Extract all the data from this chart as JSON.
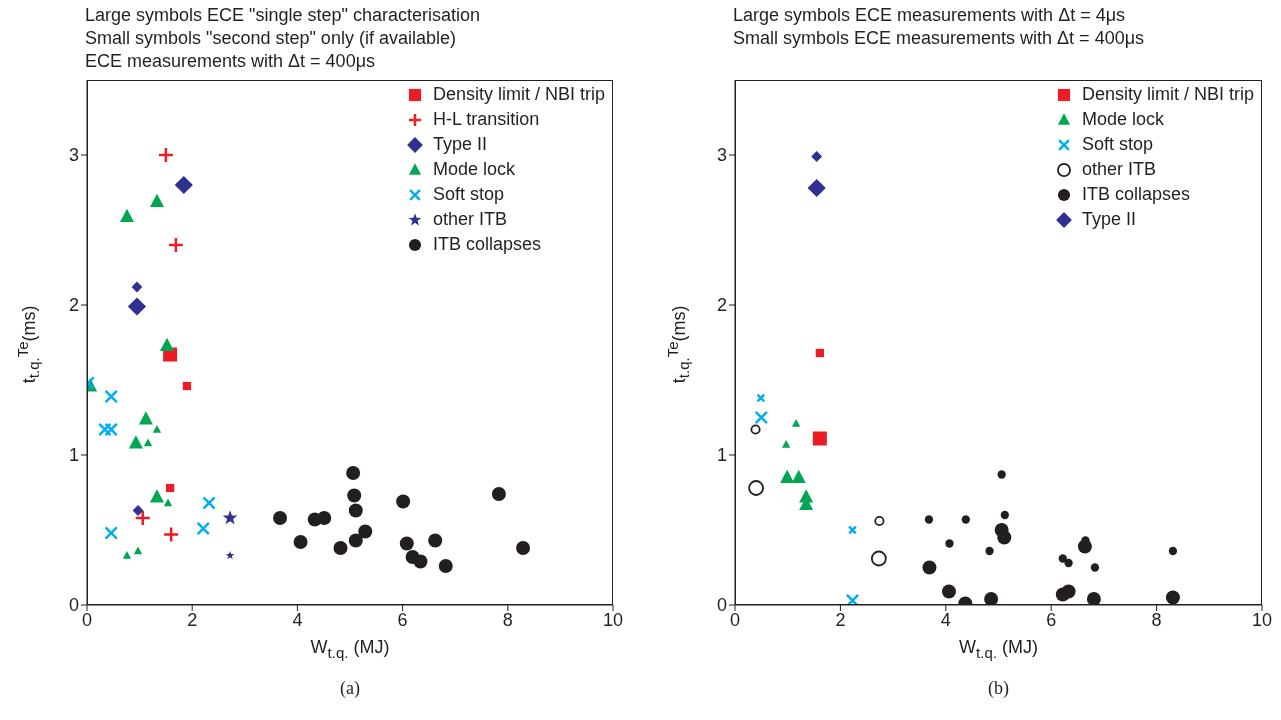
{
  "chart_data": [
    {
      "type": "scatter",
      "title": "Large symbols ECE \"single step\" characterisation\nSmall symbols \"second step\" only (if available)\nECE measurements with Δt = 400μs",
      "xlabel": "W$_{t.q.}$ (MJ)",
      "ylabel": "t$_{t.q.}$$^{Te}$(ms)",
      "annotations": [
        "(a)"
      ],
      "xlim": [
        0,
        10
      ],
      "xticks": [
        0,
        2,
        4,
        6,
        8,
        10
      ],
      "ylim": [
        0,
        3.5
      ],
      "yticks": [
        0,
        1,
        2,
        3
      ],
      "legend": "top right",
      "series": [
        {
          "name": "Density limit / NBI trip",
          "color": "#ed1c24",
          "marker": "square",
          "x": [
            1.58
          ],
          "values": [
            1.67
          ]
        },
        {
          "name": "H-L transition",
          "color": "#ed1c24",
          "marker": "plus",
          "x": [
            1.5,
            1.69,
            1.06,
            1.6
          ],
          "values": [
            3.0,
            2.4,
            0.58,
            0.47
          ]
        },
        {
          "name": "Type II",
          "color": "#2e3192",
          "marker": "diamond",
          "x": [
            1.84,
            0.95
          ],
          "values": [
            2.8,
            1.99
          ]
        },
        {
          "name": "Mode lock",
          "color": "#00a651",
          "marker": "triangle",
          "x": [
            0.76,
            1.33,
            1.52,
            0.06,
            1.12,
            0.93,
            1.33
          ],
          "values": [
            2.59,
            2.69,
            1.73,
            1.46,
            1.24,
            1.08,
            0.72
          ]
        },
        {
          "name": "Soft stop",
          "color": "#00aeef",
          "marker": "cross",
          "x": [
            0.02,
            0.46,
            0.34,
            0.46,
            0.46,
            2.32,
            2.21
          ],
          "values": [
            1.48,
            1.39,
            1.17,
            1.17,
            0.48,
            0.68,
            0.51
          ]
        },
        {
          "name": "other ITB",
          "color": "#2e3192",
          "marker": "star",
          "x": [
            2.72
          ],
          "values": [
            0.58
          ]
        },
        {
          "name": "ITB collapses",
          "color": "#231f20",
          "marker": "circle",
          "x": [
            3.67,
            4.06,
            4.33,
            4.51,
            4.82,
            5.06,
            5.08,
            5.11,
            5.11,
            5.29,
            6.01,
            6.08,
            6.19,
            6.34,
            6.62,
            6.82,
            7.83,
            8.29
          ],
          "values": [
            0.58,
            0.42,
            0.57,
            0.58,
            0.38,
            0.88,
            0.73,
            0.63,
            0.43,
            0.49,
            0.69,
            0.41,
            0.32,
            0.29,
            0.43,
            0.26,
            0.74,
            0.38
          ]
        },
        {
          "color": "#ed1c24",
          "marker": "square",
          "x": [
            1.9,
            1.58
          ],
          "values": [
            1.46,
            0.78
          ]
        },
        {
          "color": "#2e3192",
          "marker": "diamond",
          "x": [
            0.95,
            0.97
          ],
          "values": [
            2.12,
            0.63
          ]
        },
        {
          "color": "#00a651",
          "marker": "triangle",
          "x": [
            1.33,
            1.16,
            1.54,
            0.97,
            0.76
          ],
          "values": [
            1.17,
            1.08,
            0.68,
            0.36,
            0.33
          ]
        },
        {
          "color": "#2e3192",
          "marker": "star",
          "x": [
            2.72
          ],
          "values": [
            0.33
          ]
        }
      ]
    },
    {
      "type": "scatter",
      "title": "Large symbols ECE measurements with Δt = 4μs\nSmall symbols ECE measurements with Δt = 400μs",
      "xlabel": "W$_{t.q.}$ (MJ)",
      "ylabel": "t$_{t.q.}$$^{Te}$(ms)",
      "annotations": [
        "(b)"
      ],
      "xlim": [
        0,
        10
      ],
      "xticks": [
        0,
        2,
        4,
        6,
        8,
        10
      ],
      "ylim": [
        0,
        3.5
      ],
      "yticks": [
        0,
        1,
        2,
        3
      ],
      "legend": "top right",
      "series": [
        {
          "name": "Density limit / NBI trip",
          "color": "#ed1c24",
          "marker": "square",
          "x": [
            1.61
          ],
          "values": [
            1.11
          ]
        },
        {
          "name": "Mode lock",
          "color": "#00a651",
          "marker": "triangle",
          "x": [
            0.99,
            1.21,
            1.35,
            1.35
          ],
          "values": [
            0.85,
            0.85,
            0.72,
            0.67
          ]
        },
        {
          "name": "Soft stop",
          "color": "#00aeef",
          "marker": "cross",
          "x": [
            0.5,
            2.23
          ],
          "values": [
            1.25,
            0.03
          ]
        },
        {
          "name": "other ITB",
          "color": "#231f20",
          "marker": "circle-open",
          "x": [
            0.4,
            2.73
          ],
          "values": [
            0.78,
            0.31
          ]
        },
        {
          "name": "ITB collapses",
          "color": "#231f20",
          "marker": "circle",
          "x": [
            5.06,
            5.11,
            6.64,
            3.69,
            4.06,
            4.37,
            4.86,
            6.22,
            6.33,
            6.81,
            8.31
          ],
          "values": [
            0.5,
            0.45,
            0.39,
            0.25,
            0.09,
            0.01,
            0.04,
            0.07,
            0.09,
            0.04,
            0.05
          ]
        },
        {
          "name": "Type II",
          "color": "#2e3192",
          "marker": "diamond",
          "x": [
            1.55
          ],
          "values": [
            2.78
          ]
        },
        {
          "color": "#ed1c24",
          "marker": "square",
          "x": [
            1.61
          ],
          "values": [
            1.68
          ]
        },
        {
          "color": "#00a651",
          "marker": "triangle",
          "x": [
            1.16,
            0.97
          ],
          "values": [
            1.21,
            1.07
          ]
        },
        {
          "color": "#00aeef",
          "marker": "cross",
          "x": [
            0.49,
            2.23
          ],
          "values": [
            1.38,
            0.5
          ]
        },
        {
          "color": "#231f20",
          "marker": "circle-open",
          "x": [
            0.39,
            2.74
          ],
          "values": [
            1.17,
            0.56
          ]
        },
        {
          "color": "#231f20",
          "marker": "circle",
          "x": [
            5.06,
            3.68,
            4.38,
            5.12,
            4.07,
            4.83,
            6.22,
            6.33,
            6.83,
            8.31,
            6.65
          ],
          "values": [
            0.87,
            0.57,
            0.57,
            0.6,
            0.41,
            0.36,
            0.31,
            0.28,
            0.25,
            0.36,
            0.43
          ]
        },
        {
          "color": "#2e3192",
          "marker": "diamond",
          "x": [
            1.55
          ],
          "values": [
            2.99
          ]
        }
      ]
    }
  ]
}
